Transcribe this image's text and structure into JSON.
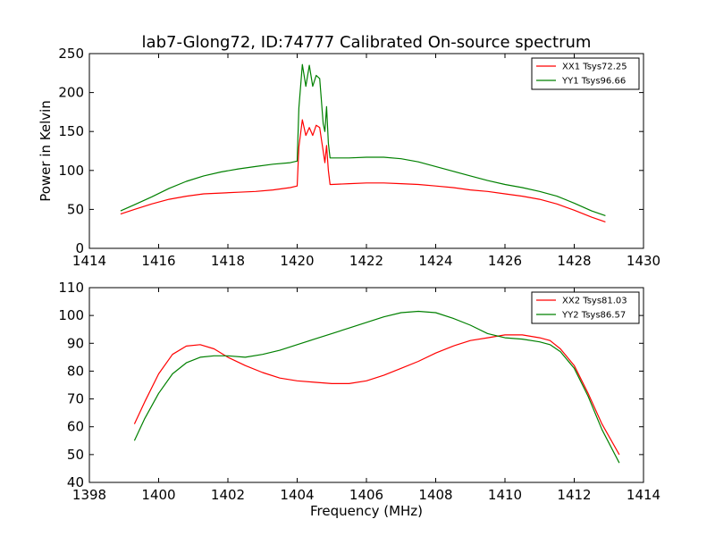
{
  "title": "lab7-Glong72, ID:74777 Calibrated On-source spectrum",
  "chart_data": [
    {
      "type": "line",
      "ylabel": "Power in Kelvin",
      "xlabel": "",
      "xlim": [
        1414,
        1430
      ],
      "ylim": [
        0,
        250
      ],
      "xticks": [
        1414,
        1416,
        1418,
        1420,
        1422,
        1424,
        1426,
        1428,
        1430
      ],
      "yticks": [
        0,
        50,
        100,
        150,
        200,
        250
      ],
      "legend_position": "top-right",
      "series": [
        {
          "name": "XX1 Tsys72.25",
          "color": "#ff0000",
          "x": [
            1414.9,
            1415.3,
            1415.8,
            1416.3,
            1416.8,
            1417.3,
            1417.8,
            1418.3,
            1418.8,
            1419.3,
            1419.8,
            1420.0,
            1420.05,
            1420.15,
            1420.25,
            1420.35,
            1420.45,
            1420.55,
            1420.65,
            1420.7,
            1420.75,
            1420.8,
            1420.85,
            1420.9,
            1420.95,
            1421.0,
            1421.5,
            1422.0,
            1422.5,
            1423.0,
            1423.5,
            1424.0,
            1424.5,
            1425.0,
            1425.5,
            1426.0,
            1426.5,
            1427.0,
            1427.5,
            1428.0,
            1428.5,
            1428.9
          ],
          "y": [
            44,
            50,
            57,
            63,
            67,
            70,
            71,
            72,
            73,
            75,
            78,
            80,
            130,
            165,
            145,
            155,
            145,
            158,
            155,
            140,
            125,
            110,
            132,
            100,
            82,
            82,
            83,
            84,
            84,
            83,
            82,
            80,
            78,
            75,
            73,
            70,
            67,
            63,
            57,
            49,
            40,
            34
          ]
        },
        {
          "name": "YY1 Tsys96.66",
          "color": "#008000",
          "x": [
            1414.9,
            1415.3,
            1415.8,
            1416.3,
            1416.8,
            1417.3,
            1417.8,
            1418.3,
            1418.8,
            1419.3,
            1419.8,
            1420.0,
            1420.05,
            1420.15,
            1420.25,
            1420.35,
            1420.45,
            1420.55,
            1420.65,
            1420.7,
            1420.75,
            1420.8,
            1420.85,
            1420.9,
            1420.95,
            1421.0,
            1421.5,
            1422.0,
            1422.5,
            1423.0,
            1423.5,
            1424.0,
            1424.5,
            1425.0,
            1425.5,
            1426.0,
            1426.5,
            1427.0,
            1427.5,
            1428.0,
            1428.5,
            1428.9
          ],
          "y": [
            48,
            56,
            66,
            77,
            86,
            93,
            98,
            102,
            105,
            108,
            110,
            112,
            180,
            236,
            208,
            235,
            208,
            222,
            218,
            190,
            160,
            150,
            182,
            135,
            116,
            116,
            116,
            117,
            117,
            115,
            111,
            105,
            99,
            93,
            87,
            82,
            78,
            73,
            67,
            58,
            48,
            42
          ]
        }
      ]
    },
    {
      "type": "line",
      "ylabel": "",
      "xlabel": "Frequency (MHz)",
      "xlim": [
        1398,
        1414
      ],
      "ylim": [
        40,
        110
      ],
      "xticks": [
        1398,
        1400,
        1402,
        1404,
        1406,
        1408,
        1410,
        1412,
        1414
      ],
      "yticks": [
        40,
        50,
        60,
        70,
        80,
        90,
        100,
        110
      ],
      "legend_position": "top-right",
      "series": [
        {
          "name": "XX2 Tsys81.03",
          "color": "#ff0000",
          "x": [
            1399.3,
            1399.6,
            1400.0,
            1400.4,
            1400.8,
            1401.2,
            1401.6,
            1402.0,
            1402.5,
            1403.0,
            1403.5,
            1404.0,
            1404.5,
            1405.0,
            1405.5,
            1406.0,
            1406.5,
            1407.0,
            1407.5,
            1408.0,
            1408.5,
            1409.0,
            1409.5,
            1410.0,
            1410.5,
            1411.0,
            1411.3,
            1411.6,
            1412.0,
            1412.4,
            1412.8,
            1413.3
          ],
          "y": [
            61,
            69,
            79,
            86,
            89,
            89.5,
            88,
            85,
            82,
            79.5,
            77.5,
            76.5,
            76,
            75.5,
            75.5,
            76.5,
            78.5,
            81,
            83.5,
            86.5,
            89,
            91,
            92,
            93,
            93,
            92,
            91,
            88,
            82,
            72,
            61,
            50
          ]
        },
        {
          "name": "YY2 Tsys86.57",
          "color": "#008000",
          "x": [
            1399.3,
            1399.6,
            1400.0,
            1400.4,
            1400.8,
            1401.2,
            1401.6,
            1402.0,
            1402.5,
            1403.0,
            1403.5,
            1404.0,
            1404.5,
            1405.0,
            1405.5,
            1406.0,
            1406.5,
            1407.0,
            1407.5,
            1408.0,
            1408.5,
            1409.0,
            1409.5,
            1410.0,
            1410.5,
            1411.0,
            1411.3,
            1411.6,
            1412.0,
            1412.4,
            1412.8,
            1413.3
          ],
          "y": [
            55,
            63,
            72,
            79,
            83,
            85,
            85.5,
            85.5,
            85,
            86,
            87.5,
            89.5,
            91.5,
            93.5,
            95.5,
            97.5,
            99.5,
            101,
            101.5,
            101,
            99,
            96.5,
            93.5,
            92,
            91.5,
            90.5,
            89.5,
            87,
            81,
            71,
            59,
            47
          ]
        }
      ]
    }
  ]
}
